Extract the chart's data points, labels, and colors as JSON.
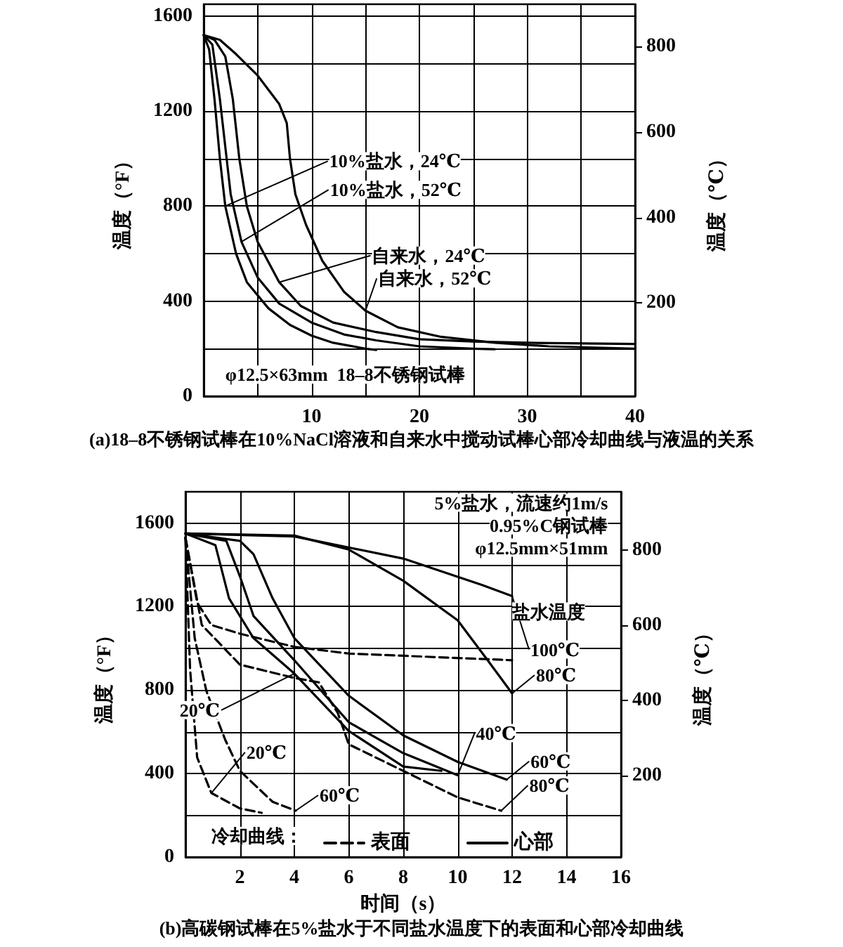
{
  "chart_data": [
    {
      "type": "line",
      "title": "(a)18–8不锈钢试棒在10%NaCl溶液和自来水中搅动试棒心部冷却曲线与液温的关系",
      "ylabel": "温度（°F）",
      "y2label": "温度（℃）",
      "xlim": [
        0,
        40
      ],
      "xticks": [
        {
          "value": 0,
          "label": null
        },
        {
          "value": 5,
          "label": null
        },
        10,
        {
          "value": 15,
          "label": null
        },
        20,
        {
          "value": 25,
          "label": null
        },
        30,
        {
          "value": 35,
          "label": null
        },
        40
      ],
      "ylim": [
        0,
        1650
      ],
      "yticks": [
        0,
        {
          "value": 200,
          "label": null
        },
        400,
        {
          "value": 600,
          "label": null
        },
        800,
        {
          "value": 1000,
          "label": null
        },
        1200,
        {
          "value": 1400,
          "label": null
        },
        1600
      ],
      "y2lim": [
        -17.8,
        898.9
      ],
      "y2ticks": [
        200,
        400,
        600,
        800
      ],
      "grid": true,
      "legend": false,
      "marker": "none",
      "series": [
        {
          "color": "#000000",
          "line_style": "solid",
          "x": [
            0,
            0.5,
            1,
            1.5,
            2,
            3,
            4,
            6,
            8,
            10,
            12,
            15,
            16
          ],
          "values": [
            1520,
            1460,
            1250,
            1000,
            800,
            600,
            480,
            370,
            300,
            255,
            225,
            200,
            195
          ]
        },
        {
          "color": "#000000",
          "line_style": "solid",
          "x": [
            0,
            0.8,
            1.5,
            2,
            2.5,
            3.5,
            5,
            7,
            10,
            13,
            16,
            20,
            25,
            27
          ],
          "values": [
            1520,
            1480,
            1250,
            1050,
            850,
            650,
            500,
            390,
            310,
            260,
            235,
            210,
            200,
            198
          ]
        },
        {
          "color": "#000000",
          "line_style": "solid",
          "x": [
            0,
            1,
            2,
            2.7,
            3.3,
            4,
            5,
            7,
            9,
            12,
            16,
            20,
            25,
            30,
            40
          ],
          "values": [
            1520,
            1500,
            1430,
            1250,
            1000,
            800,
            650,
            480,
            380,
            310,
            270,
            240,
            230,
            225,
            220
          ]
        },
        {
          "color": "#000000",
          "line_style": "solid",
          "x": [
            0,
            1.5,
            3,
            5,
            7,
            7.7,
            8,
            8.5,
            9.5,
            11,
            13,
            15,
            18,
            22,
            27,
            32,
            40
          ],
          "values": [
            1520,
            1500,
            1440,
            1350,
            1230,
            1150,
            1000,
            850,
            720,
            570,
            440,
            360,
            290,
            250,
            225,
            210,
            200
          ]
        }
      ],
      "annotations": [
        {
          "text": "10%盐水，24℃",
          "x": 2,
          "y": 800
        },
        {
          "text": "10%盐水，52℃",
          "x": 3.5,
          "y": 650
        },
        {
          "text": "自来水，24℃",
          "x": 7,
          "y": 480
        },
        {
          "text": "自来水，52℃",
          "x": 15,
          "y": 360
        },
        "φ12.5×63mm  18–8不锈钢试棒"
      ]
    },
    {
      "type": "line",
      "title": "(b)高碳钢试棒在5%盐水于不同盐水温度下的表面和心部冷却曲线",
      "xlabel": "时间（s）",
      "ylabel": "温度（°F）",
      "y2label": "温度（℃）",
      "xlim": [
        0,
        16
      ],
      "xticks": [
        {
          "value": 0,
          "label": null
        },
        2,
        4,
        6,
        8,
        10,
        12,
        14,
        16
      ],
      "ylim": [
        0,
        1750
      ],
      "yticks": [
        0,
        {
          "value": 200,
          "label": null
        },
        400,
        {
          "value": 600,
          "label": null
        },
        800,
        {
          "value": 1000,
          "label": null
        },
        1200,
        {
          "value": 1400,
          "label": null
        },
        1600
      ],
      "y2lim": [
        -17.8,
        954.4
      ],
      "y2ticks": [
        200,
        400,
        600,
        800
      ],
      "grid": true,
      "legend": "bottom",
      "legend_title": "冷却曲线：",
      "marker": "none",
      "series": [
        {
          "name": "心部",
          "color": "#000000",
          "line_style": "solid",
          "x": [
            0,
            4,
            8,
            10.9,
            12
          ],
          "values": [
            1550,
            1536,
            1430,
            1303,
            1250
          ]
        },
        {
          "color": "#000000",
          "line_style": "solid",
          "x": [
            0,
            4,
            6,
            8,
            10,
            11.1,
            12
          ],
          "values": [
            1550,
            1540,
            1473,
            1324,
            1134,
            943,
            784
          ]
        },
        {
          "color": "#000000",
          "line_style": "solid",
          "x": [
            0,
            2,
            2.5,
            3.2,
            4,
            6,
            8,
            10,
            11.8
          ],
          "values": [
            1550,
            1515,
            1451,
            1240,
            1049,
            773,
            583,
            456,
            371
          ]
        },
        {
          "color": "#000000",
          "line_style": "solid",
          "x": [
            0,
            1.5,
            2,
            2.5,
            4,
            6,
            8,
            10
          ],
          "values": [
            1550,
            1515,
            1345,
            1155,
            943,
            646,
            498,
            392
          ]
        },
        {
          "color": "#000000",
          "line_style": "solid",
          "x": [
            0,
            1.1,
            1.6,
            2.5,
            4,
            6,
            8,
            9.4
          ],
          "values": [
            1550,
            1494,
            1240,
            1049,
            879,
            604,
            434,
            413
          ]
        },
        {
          "name": "表面",
          "color": "#000000",
          "line_style": "dashed",
          "x": [
            0,
            0.43,
            0.95,
            2,
            4,
            6,
            12
          ],
          "values": [
            1530,
            1219,
            1112,
            1070,
            1007,
            975,
            943
          ]
        },
        {
          "color": "#000000",
          "line_style": "dashed",
          "x": [
            0,
            0.6,
            2,
            4,
            4.9,
            5.6,
            6,
            8,
            10,
            11.6
          ],
          "values": [
            1530,
            1112,
            922,
            858,
            837,
            689,
            540,
            413,
            286,
            222
          ]
        },
        {
          "color": "#000000",
          "line_style": "dashed",
          "x": [
            0,
            0.34,
            0.77,
            1.46,
            2,
            3.2,
            4.05
          ],
          "values": [
            1530,
            1049,
            795,
            562,
            413,
            265,
            222
          ]
        },
        {
          "color": "#000000",
          "line_style": "dashed",
          "x": [
            0,
            0.17,
            0.43,
            0.95,
            2,
            2.8
          ],
          "values": [
            1530,
            900,
            477,
            307,
            233,
            212
          ]
        }
      ],
      "annotations": [
        "5%盐水，流速约1m/s",
        "0.95%C钢试棒",
        "φ12.5mm×51mm",
        "盐水温度",
        {
          "text": "100℃",
          "x": 12,
          "y": 1250
        },
        {
          "text": "80℃",
          "x": 12,
          "y": 784
        },
        {
          "text": "40℃",
          "x": 10,
          "y": 392
        },
        {
          "text": "60℃",
          "x": 11.8,
          "y": 371
        },
        {
          "text": "80℃",
          "x": 11.6,
          "y": 222
        },
        {
          "text": "20℃",
          "x": 4,
          "y": 879
        },
        {
          "text": "20℃",
          "x": 0.95,
          "y": 307
        },
        {
          "text": "60℃",
          "x": 4.05,
          "y": 222
        }
      ]
    }
  ]
}
